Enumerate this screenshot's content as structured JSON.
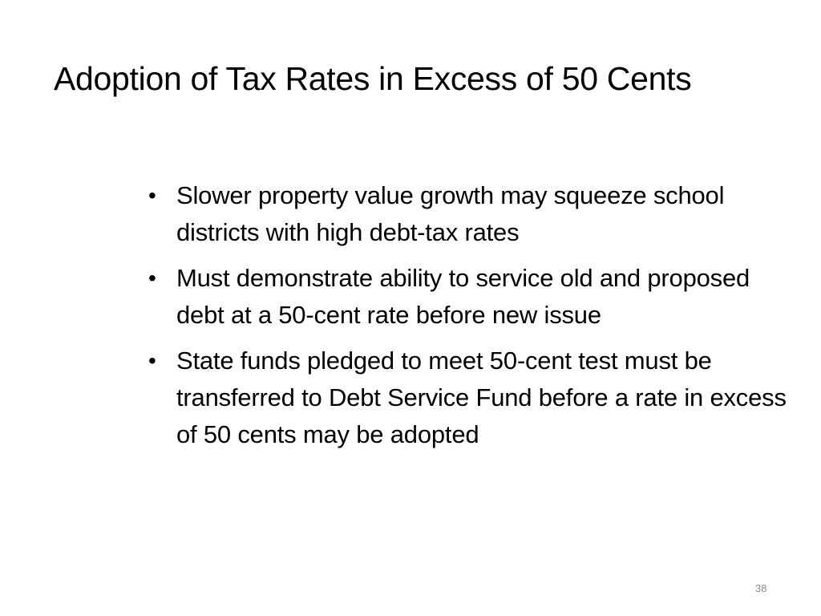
{
  "slide": {
    "title": "Adoption of Tax Rates in Excess of 50 Cents",
    "bullets": [
      {
        "marker": "•",
        "text": "Slower property value growth may squeeze school districts with high debt-tax rates"
      },
      {
        "marker": "•",
        "text": "Must demonstrate ability to service old and proposed debt at a 50-cent rate before new issue"
      },
      {
        "marker": "•",
        "text": "State funds pledged to meet 50-cent test must be transferred to Debt Service Fund before a rate in excess of 50 cents may be adopted"
      }
    ],
    "page_number": "38"
  }
}
